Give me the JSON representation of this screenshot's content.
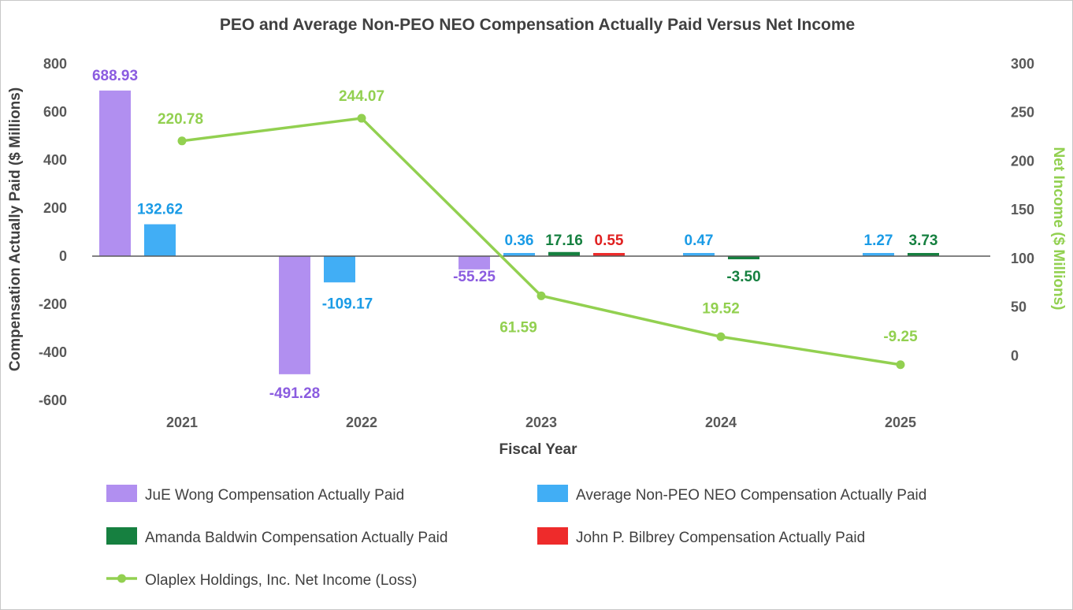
{
  "chart_data": {
    "type": "bar",
    "title": "PEO and Average Non-PEO NEO Compensation Actually Paid Versus Net Income",
    "xlabel": "Fiscal Year",
    "ylabel": "Compensation Actually Paid ($ Millions)",
    "y2label": "Net Income ($ Millions)",
    "categories": [
      "2021",
      "2022",
      "2023",
      "2024",
      "2025"
    ],
    "ylim": [
      -600,
      800
    ],
    "yticks": [
      800,
      600,
      400,
      200,
      0,
      -200,
      -400,
      -600
    ],
    "y2lim": [
      -24,
      300
    ],
    "y2ticks": [
      300,
      250,
      200,
      150,
      100,
      50,
      0
    ],
    "grid": false,
    "legend_position": "bottom",
    "series": [
      {
        "name": "JuE Wong Compensation Actually Paid",
        "type": "bar",
        "color": "#b18ff0",
        "label_color": "#8b5ce0",
        "values": [
          688.93,
          -491.28,
          -55.25,
          null,
          null
        ],
        "labels": [
          "688.93",
          "-491.28",
          "-55.25",
          null,
          null
        ]
      },
      {
        "name": "Average Non-PEO NEO Compensation Actually Paid",
        "type": "bar",
        "color": "#41aef5",
        "label_color": "#1a9be6",
        "values": [
          132.62,
          -109.17,
          0.36,
          0.47,
          1.27
        ],
        "labels": [
          "132.62",
          "-109.17",
          "0.36",
          "0.47",
          "1.27"
        ]
      },
      {
        "name": "Amanda Baldwin Compensation Actually Paid",
        "type": "bar",
        "color": "#168040",
        "label_color": "#168040",
        "values": [
          null,
          null,
          17.16,
          -3.5,
          3.73
        ],
        "labels": [
          null,
          null,
          "17.16",
          "-3.50",
          "3.73"
        ]
      },
      {
        "name": "John P. Bilbrey Compensation Actually Paid",
        "type": "bar",
        "color": "#ee2b2b",
        "label_color": "#e02020",
        "values": [
          null,
          null,
          0.55,
          null,
          null
        ],
        "labels": [
          null,
          null,
          "0.55",
          null,
          null
        ]
      },
      {
        "name": "Olaplex Holdings, Inc. Net Income (Loss)",
        "type": "line",
        "axis": "right",
        "color": "#92d050",
        "label_color": "#92d050",
        "values": [
          220.78,
          244.07,
          61.59,
          19.52,
          -9.25
        ],
        "labels": [
          "220.78",
          "244.07",
          "61.59",
          "19.52",
          "-9.25"
        ]
      }
    ]
  }
}
